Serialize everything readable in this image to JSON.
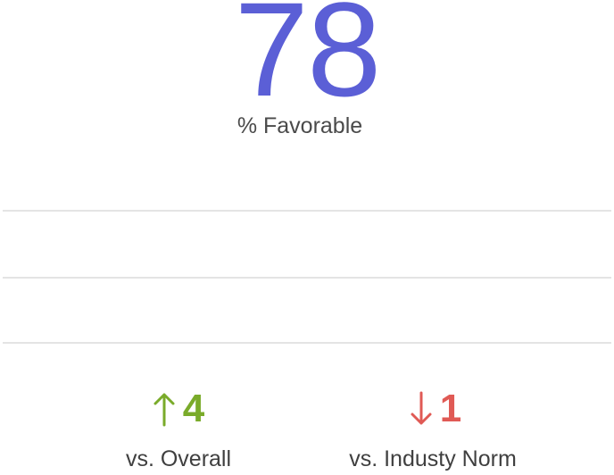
{
  "score": {
    "value": "78",
    "label": "% Favorable",
    "color": "#5b5fd6"
  },
  "comparisons": [
    {
      "direction": "up",
      "icon": "arrow-up-icon",
      "value": "4",
      "caption": "vs. Overall",
      "color": "#7aab2a"
    },
    {
      "direction": "down",
      "icon": "arrow-down-icon",
      "value": "1",
      "caption": "vs. Industy Norm",
      "color": "#e05a55"
    }
  ]
}
